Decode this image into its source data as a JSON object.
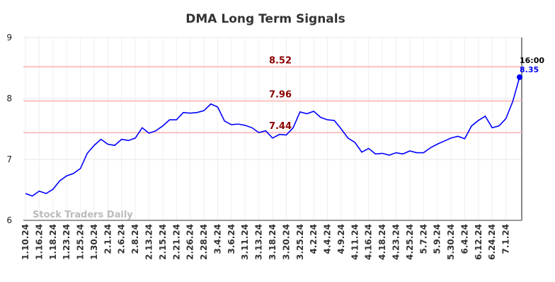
{
  "chart_data": {
    "type": "line",
    "title": "DMA Long Term Signals",
    "categories": [
      "1.10.24",
      null,
      "1.16.24",
      null,
      "1.18.24",
      null,
      "1.23.24",
      null,
      "1.25.24",
      null,
      "1.30.24",
      null,
      "2.1.24",
      null,
      "2.6.24",
      null,
      "2.8.24",
      null,
      "2.13.24",
      null,
      "2.15.24",
      null,
      "2.21.24",
      null,
      "2.26.24",
      null,
      "2.28.24",
      null,
      "3.4.24",
      null,
      "3.6.24",
      null,
      "3.11.24",
      null,
      "3.13.24",
      null,
      "3.18.24",
      null,
      "3.20.24",
      null,
      "3.25.24",
      null,
      "4.2.24",
      null,
      "4.4.24",
      null,
      "4.9.24",
      null,
      "4.11.24",
      null,
      "4.16.24",
      null,
      "4.18.24",
      null,
      "4.23.24",
      null,
      "4.25.24",
      null,
      "5.7.24",
      null,
      "5.9.24",
      null,
      "5.30.24",
      null,
      "6.4.24",
      null,
      "6.12.24",
      null,
      "6.24.24",
      null,
      "7.1.24",
      null,
      null
    ],
    "series": [
      {
        "color": "#0000ff",
        "values": [
          6.44,
          6.4,
          6.48,
          6.44,
          6.51,
          6.65,
          6.73,
          6.77,
          6.85,
          7.1,
          7.23,
          7.33,
          7.25,
          7.23,
          7.33,
          7.31,
          7.35,
          7.52,
          7.43,
          7.47,
          7.55,
          7.65,
          7.65,
          7.77,
          7.76,
          7.77,
          7.8,
          7.91,
          7.86,
          7.63,
          7.57,
          7.58,
          7.56,
          7.52,
          7.44,
          7.47,
          7.35,
          7.41,
          7.4,
          7.52,
          7.78,
          7.75,
          7.79,
          7.69,
          7.65,
          7.64,
          7.5,
          7.35,
          7.28,
          7.12,
          7.18,
          7.09,
          7.1,
          7.07,
          7.11,
          7.09,
          7.14,
          7.11,
          7.11,
          7.19,
          7.25,
          7.3,
          7.35,
          7.38,
          7.34,
          7.55,
          7.64,
          7.71,
          7.52,
          7.55,
          7.67,
          7.95,
          8.35
        ]
      }
    ],
    "levels": [
      8.52,
      7.96,
      7.44
    ],
    "level_color": "#ffc0c0",
    "level_label_color": "#8b0000",
    "last_time": "16:00",
    "watermark": "Stock Traders Daily",
    "ylim": [
      6,
      9
    ],
    "yticks": [
      6,
      7,
      8,
      9
    ],
    "grid": true
  }
}
